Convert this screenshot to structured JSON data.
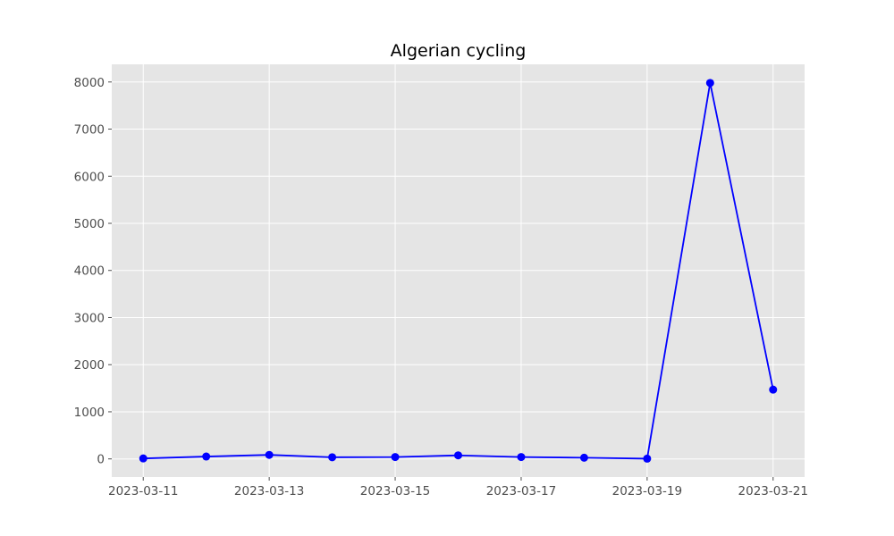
{
  "chart_data": {
    "type": "line",
    "title": "Algerian cycling",
    "xlabel": "",
    "ylabel": "",
    "x": [
      "2023-03-11",
      "2023-03-12",
      "2023-03-13",
      "2023-03-14",
      "2023-03-15",
      "2023-03-16",
      "2023-03-17",
      "2023-03-18",
      "2023-03-19",
      "2023-03-20",
      "2023-03-21"
    ],
    "series": [
      {
        "values": [
          10,
          50,
          85,
          35,
          40,
          75,
          40,
          25,
          5,
          7980,
          1470
        ]
      }
    ],
    "x_ticks": [
      "2023-03-11",
      "2023-03-13",
      "2023-03-15",
      "2023-03-17",
      "2023-03-19",
      "2023-03-21"
    ],
    "y_ticks": [
      0,
      1000,
      2000,
      3000,
      4000,
      5000,
      6000,
      7000,
      8000
    ],
    "ylim": [
      -385,
      8375
    ],
    "grid": true,
    "colors": {
      "series": "#0000ff",
      "plot_background": "#e5e5e5",
      "grid": "#ffffff",
      "tick_text": "#4d4d4d"
    }
  }
}
